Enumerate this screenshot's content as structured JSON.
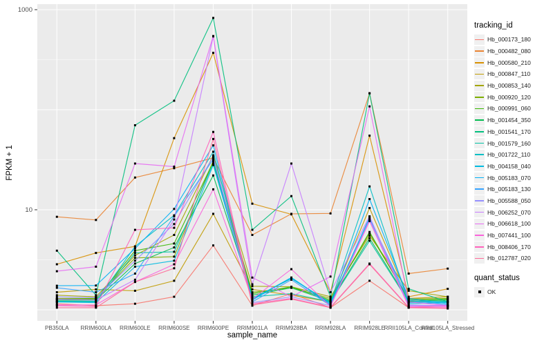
{
  "figure": {
    "panel": {
      "bg": "#EBEBEB",
      "grid_color": "#FFFFFF",
      "tick_color": "#333333",
      "tick_label_color": "#4D4D4D",
      "point_color": "#000000"
    },
    "y_axis": {
      "title": "FPKM + 1",
      "scale": "log10",
      "tick_labels": [
        "1000",
        "10"
      ],
      "tick_values": [
        1000,
        10
      ],
      "major_gridlines": [
        1,
        10,
        100,
        1000
      ],
      "minor_gridlines": [
        3.162,
        31.62,
        316.2
      ]
    },
    "x_axis": {
      "title": "sample_name"
    },
    "legend": {
      "tracking_title": "tracking_id",
      "quant_title": "quant_status",
      "quant_items": [
        {
          "label": "OK",
          "shape": "square",
          "color": "#000000"
        }
      ]
    }
  },
  "chart_data": {
    "type": "line",
    "title": "",
    "xlabel": "sample_name",
    "ylabel": "FPKM + 1",
    "y_scale": "log10",
    "ylim": [
      0.78,
      1150
    ],
    "grid": true,
    "legend_position": "right",
    "point_shape": "filled-square-black",
    "categories": [
      "PB350LA",
      "RRIM600LA",
      "RRIM600LE",
      "RRIM600SE",
      "RRIM600PE",
      "RRIM901LA",
      "RRIM928BA",
      "RRIM928LA",
      "RRIM928LE",
      "RRII105LA_Control",
      "RRII105LA_Stressed"
    ],
    "series": [
      {
        "name": "Hb_000173_180",
        "color": "#F8766D",
        "values": [
          1.15,
          1.1,
          1.15,
          1.35,
          4.4,
          1.1,
          1.45,
          1.05,
          1.95,
          1.05,
          1.1
        ]
      },
      {
        "name": "Hb_000482_080",
        "color": "#EA8331",
        "values": [
          8.5,
          7.9,
          21,
          26,
          33,
          5.6,
          9.1,
          9.2,
          146,
          2.3,
          2.58
        ]
      },
      {
        "name": "Hb_000580_210",
        "color": "#D89000",
        "values": [
          2.85,
          3.7,
          4.3,
          52,
          370,
          11.5,
          9.0,
          1.5,
          55,
          1.35,
          1.62
        ]
      },
      {
        "name": "Hb_000847_110",
        "color": "#C09B00",
        "values": [
          1.5,
          1.6,
          1.55,
          1.95,
          9.1,
          1.6,
          1.4,
          1.2,
          10.4,
          1.3,
          1.35
        ]
      },
      {
        "name": "Hb_000853_140",
        "color": "#A3A500",
        "values": [
          1.4,
          1.35,
          3.5,
          5.6,
          35,
          1.72,
          1.7,
          1.35,
          5.5,
          1.55,
          1.35
        ]
      },
      {
        "name": "Hb_000920_120",
        "color": "#7CAE00",
        "values": [
          1.3,
          1.3,
          3.3,
          3.4,
          31,
          1.5,
          1.66,
          1.3,
          5.8,
          1.28,
          1.3
        ]
      },
      {
        "name": "Hb_000991_060",
        "color": "#39B600",
        "values": [
          1.28,
          1.28,
          3.9,
          4.6,
          30,
          1.45,
          1.7,
          1.25,
          6.0,
          1.25,
          1.28
        ]
      },
      {
        "name": "Hb_001454_350",
        "color": "#00BB4E",
        "values": [
          1.25,
          1.25,
          2.9,
          4.2,
          22,
          1.4,
          1.66,
          1.22,
          5.2,
          1.22,
          1.25
        ]
      },
      {
        "name": "Hb_001541_170",
        "color": "#00BF7D",
        "values": [
          3.9,
          1.4,
          70,
          123,
          826,
          6.3,
          13.7,
          1.35,
          146,
          1.62,
          1.2
        ]
      },
      {
        "name": "Hb_001579_160",
        "color": "#00C1A3",
        "values": [
          1.22,
          1.22,
          3.7,
          3.8,
          29,
          1.35,
          1.45,
          1.2,
          4.9,
          1.2,
          1.22
        ]
      },
      {
        "name": "Hb_001722_110",
        "color": "#00BFC4",
        "values": [
          1.2,
          1.2,
          4.3,
          8.8,
          38,
          1.3,
          2.05,
          1.18,
          17.1,
          1.18,
          1.2
        ]
      },
      {
        "name": "Hb_004158_040",
        "color": "#00BAE0",
        "values": [
          1.2,
          1.18,
          2.7,
          3.1,
          28,
          1.28,
          2.1,
          1.15,
          8.4,
          1.15,
          1.18
        ]
      },
      {
        "name": "Hb_005183_070",
        "color": "#00B0F6",
        "values": [
          1.74,
          1.75,
          4.1,
          10.2,
          44,
          1.25,
          2.1,
          1.12,
          12.8,
          1.3,
          1.15
        ]
      },
      {
        "name": "Hb_005183_130",
        "color": "#35A2FF",
        "values": [
          1.66,
          1.5,
          2.3,
          8.6,
          32,
          1.2,
          2.0,
          1.1,
          8.2,
          1.25,
          1.12
        ]
      },
      {
        "name": "Hb_005588_050",
        "color": "#9590FF",
        "values": [
          1.35,
          1.32,
          3.1,
          7.2,
          34,
          1.18,
          1.35,
          1.1,
          7.9,
          1.12,
          1.1
        ]
      },
      {
        "name": "Hb_006252_070",
        "color": "#C77CFF",
        "values": [
          1.28,
          1.25,
          2.0,
          8.0,
          540,
          1.8,
          29,
          1.5,
          8.6,
          1.1,
          1.1
        ]
      },
      {
        "name": "Hb_006618_100",
        "color": "#E76BF3",
        "values": [
          2.43,
          2.7,
          29,
          27,
          545,
          2.1,
          1.35,
          2.15,
          108,
          1.2,
          1.1
        ]
      },
      {
        "name": "Hb_007441_100",
        "color": "#FA62DB",
        "values": [
          1.12,
          1.12,
          1.9,
          2.85,
          16,
          1.28,
          2.55,
          1.08,
          7.7,
          1.08,
          1.08
        ]
      },
      {
        "name": "Hb_008406_170",
        "color": "#FF62BC",
        "values": [
          1.1,
          1.08,
          6.3,
          6.6,
          60,
          1.15,
          1.3,
          1.06,
          2.9,
          1.06,
          1.05
        ]
      },
      {
        "name": "Hb_012787_020",
        "color": "#FF6A98",
        "values": [
          1.05,
          1.05,
          1.9,
          2.6,
          51,
          1.12,
          1.28,
          1.05,
          2.85,
          1.05,
          1.03
        ]
      }
    ]
  }
}
